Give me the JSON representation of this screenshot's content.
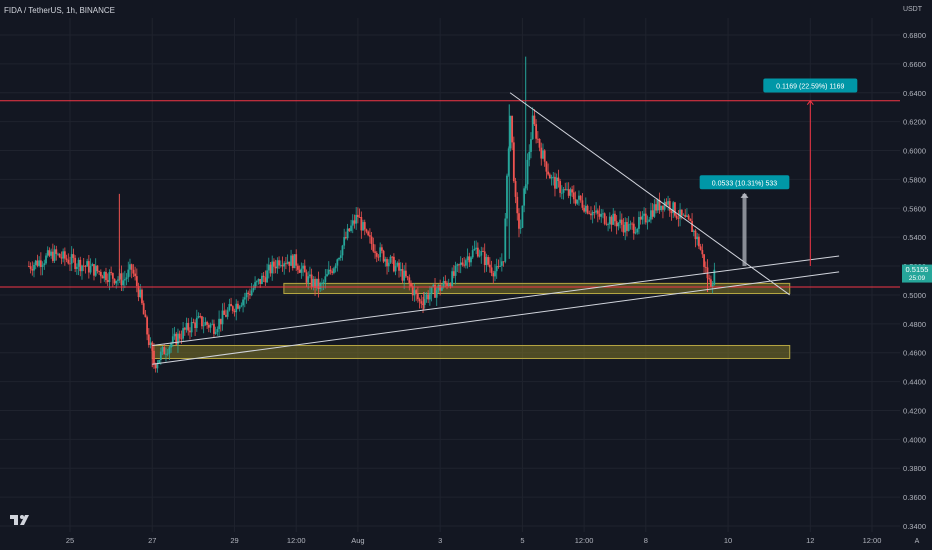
{
  "header": {
    "symbol": "FIDA / TetherUS, 1h, BINANCE"
  },
  "axis": {
    "currency": "USDT",
    "corner": "A"
  },
  "colors": {
    "background": "#131722",
    "grid": "#1f232e",
    "bull": "#26a69a",
    "bear": "#ef5350",
    "axis_text": "#b2b5be",
    "trendline": "#d1d4dc",
    "resistance": "#f23645",
    "zone_fill": "rgba(128,118,40,0.55)",
    "zone_border": "#b5a642",
    "label_bg": "#0097a7"
  },
  "chart_data": {
    "type": "candlestick",
    "title": "FIDA / TetherUS, 1h, BINANCE",
    "ylabel": "USDT",
    "ylim": [
      0.33,
      0.69
    ],
    "y_ticks": [
      "0.6800",
      "0.6600",
      "0.6400",
      "0.6200",
      "0.6000",
      "0.5800",
      "0.5600",
      "0.5400",
      "0.5200",
      "0.5000",
      "0.4800",
      "0.4600",
      "0.4400",
      "0.4200",
      "0.4000",
      "0.3800",
      "0.3600",
      "0.3400"
    ],
    "x_range_days": [
      24,
      45
    ],
    "x_ticks": [
      {
        "t": 25.0,
        "label": "25"
      },
      {
        "t": 27.0,
        "label": "27"
      },
      {
        "t": 29.0,
        "label": "29"
      },
      {
        "t": 30.5,
        "label": "12:00"
      },
      {
        "t": 32.0,
        "label": "Aug"
      },
      {
        "t": 34.0,
        "label": "3"
      },
      {
        "t": 36.0,
        "label": "5"
      },
      {
        "t": 37.5,
        "label": "12:00"
      },
      {
        "t": 39.0,
        "label": "8"
      },
      {
        "t": 41.0,
        "label": "10"
      },
      {
        "t": 43.0,
        "label": "12"
      },
      {
        "t": 44.5,
        "label": "12:00"
      }
    ],
    "price_path": [
      [
        24.0,
        0.52
      ],
      [
        24.6,
        0.528
      ],
      [
        25.2,
        0.522
      ],
      [
        25.8,
        0.515
      ],
      [
        26.3,
        0.51
      ],
      [
        26.5,
        0.518
      ],
      [
        26.7,
        0.5
      ],
      [
        26.9,
        0.47
      ],
      [
        27.05,
        0.452
      ],
      [
        27.3,
        0.462
      ],
      [
        27.7,
        0.473
      ],
      [
        28.1,
        0.482
      ],
      [
        28.5,
        0.478
      ],
      [
        28.9,
        0.49
      ],
      [
        29.3,
        0.5
      ],
      [
        29.7,
        0.512
      ],
      [
        30.1,
        0.525
      ],
      [
        30.5,
        0.523
      ],
      [
        30.8,
        0.51
      ],
      [
        31.1,
        0.505
      ],
      [
        31.4,
        0.52
      ],
      [
        31.8,
        0.545
      ],
      [
        32.0,
        0.555
      ],
      [
        32.2,
        0.54
      ],
      [
        32.5,
        0.53
      ],
      [
        32.9,
        0.52
      ],
      [
        33.2,
        0.51
      ],
      [
        33.5,
        0.495
      ],
      [
        33.7,
        0.5
      ],
      [
        34.0,
        0.505
      ],
      [
        34.3,
        0.512
      ],
      [
        34.6,
        0.525
      ],
      [
        34.9,
        0.532
      ],
      [
        35.2,
        0.52
      ],
      [
        35.4,
        0.515
      ],
      [
        35.55,
        0.528
      ],
      [
        35.7,
        0.628
      ],
      [
        35.85,
        0.555
      ],
      [
        35.95,
        0.545
      ],
      [
        36.1,
        0.585
      ],
      [
        36.25,
        0.62
      ],
      [
        36.45,
        0.6
      ],
      [
        36.7,
        0.58
      ],
      [
        37.0,
        0.572
      ],
      [
        37.4,
        0.565
      ],
      [
        37.8,
        0.555
      ],
      [
        38.2,
        0.552
      ],
      [
        38.6,
        0.546
      ],
      [
        38.9,
        0.55
      ],
      [
        39.2,
        0.56
      ],
      [
        39.5,
        0.565
      ],
      [
        39.8,
        0.555
      ],
      [
        40.1,
        0.548
      ],
      [
        40.3,
        0.535
      ],
      [
        40.45,
        0.518
      ],
      [
        40.55,
        0.508
      ],
      [
        40.7,
        0.5155
      ]
    ],
    "wicks": [
      {
        "t": 26.2,
        "high": 0.57,
        "low": 0.51
      },
      {
        "t": 27.0,
        "high": 0.462,
        "low": 0.45
      },
      {
        "t": 33.6,
        "high": 0.502,
        "low": 0.49
      },
      {
        "t": 35.68,
        "high": 0.632,
        "low": 0.525
      },
      {
        "t": 36.08,
        "high": 0.665,
        "low": 0.57
      },
      {
        "t": 40.5,
        "high": 0.515,
        "low": 0.502
      }
    ],
    "resistance_line": 0.6345,
    "support_line": 0.5055,
    "zones": [
      {
        "t1": 30.2,
        "t2": 42.5,
        "y1": 0.501,
        "y2": 0.508
      },
      {
        "t1": 27.0,
        "t2": 42.5,
        "y1": 0.456,
        "y2": 0.465
      }
    ],
    "trendlines": [
      {
        "t1": 35.7,
        "y1": 0.64,
        "t2": 42.5,
        "y2": 0.5
      },
      {
        "t1": 27.0,
        "y1": 0.452,
        "t2": 43.7,
        "y2": 0.516
      },
      {
        "t1": 27.0,
        "y1": 0.465,
        "t2": 43.7,
        "y2": 0.527
      }
    ],
    "projections": [
      {
        "t": 43.0,
        "from": 0.52,
        "to": 0.6345,
        "color": "#f23645",
        "label": "0.1169 (22.59%) 1169",
        "label_at": 0.645
      },
      {
        "t": 41.4,
        "from": 0.52,
        "to": 0.57,
        "color": "#b2b5be",
        "label": "0.0533 (10.31%) 533",
        "label_at": 0.578
      }
    ],
    "current_price": {
      "value": "0.5155",
      "countdown": "25:09",
      "y": 0.5155
    }
  }
}
